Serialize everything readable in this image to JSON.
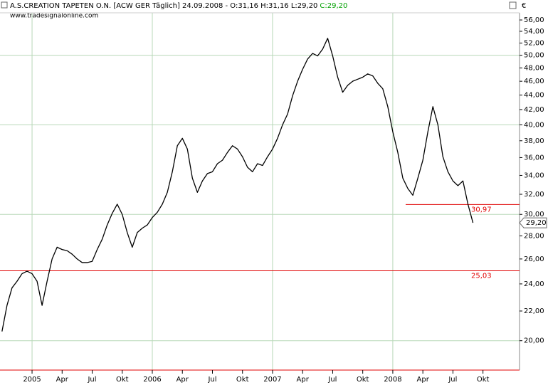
{
  "chart_data": {
    "type": "line",
    "title": "A.S.CREATION TAPETEN O.N. [ACW GER  Täglich] 24.09.2008 - O:31,16 H:31,16 L:29,20",
    "close_label": "C:29,20",
    "source": "www.tradesignalonline.com",
    "currency": "€",
    "log": true,
    "ylim": [
      18.2,
      57.3
    ],
    "yticks": [
      {
        "value": 20,
        "label": "20,00"
      },
      {
        "value": 22,
        "label": "22,00"
      },
      {
        "value": 24,
        "label": "24,00"
      },
      {
        "value": 26,
        "label": "26,00"
      },
      {
        "value": 28,
        "label": "28,00"
      },
      {
        "value": 30,
        "label": "30,00"
      },
      {
        "value": 32,
        "label": "32,00"
      },
      {
        "value": 34,
        "label": "34,00"
      },
      {
        "value": 36,
        "label": "36,00"
      },
      {
        "value": 38,
        "label": "38,00"
      },
      {
        "value": 40,
        "label": "40,00"
      },
      {
        "value": 42,
        "label": "42,00"
      },
      {
        "value": 44,
        "label": "44,00"
      },
      {
        "value": 46,
        "label": "46,00"
      },
      {
        "value": 48,
        "label": "48,00"
      },
      {
        "value": 50,
        "label": "50,00"
      },
      {
        "value": 52,
        "label": "52,00"
      },
      {
        "value": 54,
        "label": "54,00"
      },
      {
        "value": 56,
        "label": "56,00"
      }
    ],
    "ygrid": [
      20,
      30,
      40,
      50
    ],
    "categories": [
      null,
      null,
      null,
      null,
      null,
      null,
      "2005",
      null,
      null,
      null,
      null,
      null,
      "Apr",
      null,
      null,
      null,
      null,
      null,
      "Jul",
      null,
      null,
      null,
      null,
      null,
      "Okt",
      null,
      null,
      null,
      null,
      null,
      "2006",
      null,
      null,
      null,
      null,
      null,
      "Apr",
      null,
      null,
      null,
      null,
      null,
      "Jul",
      null,
      null,
      null,
      null,
      null,
      "Okt",
      null,
      null,
      null,
      null,
      null,
      "2007",
      null,
      null,
      null,
      null,
      null,
      "Apr",
      null,
      null,
      null,
      null,
      null,
      "Jul",
      null,
      null,
      null,
      null,
      null,
      "Okt",
      null,
      null,
      null,
      null,
      null,
      "2008",
      null,
      null,
      null,
      null,
      null,
      "Apr",
      null,
      null,
      null,
      null,
      null,
      "Jul",
      null,
      null,
      null,
      null,
      null,
      "Okt"
    ],
    "values": [
      20.6,
      22.4,
      23.7,
      24.2,
      24.8,
      25,
      24.8,
      24.2,
      22.4,
      24.2,
      26,
      27,
      26.8,
      26.7,
      26.4,
      26,
      25.7,
      25.7,
      25.8,
      26.8,
      27.7,
      29,
      30.1,
      31,
      30,
      28.3,
      27,
      28.3,
      28.7,
      29,
      29.7,
      30.2,
      31,
      32.2,
      34.4,
      37.4,
      38.3,
      37,
      33.7,
      32.2,
      33.4,
      34.2,
      34.4,
      35.3,
      35.7,
      36.6,
      37.4,
      37,
      36.1,
      34.9,
      34.4,
      35.3,
      35.1,
      36.1,
      37,
      38.3,
      40,
      41.4,
      43.9,
      46,
      47.8,
      49.4,
      50.3,
      49.9,
      51,
      52.8,
      49.9,
      46.6,
      44.4,
      45.4,
      46,
      46.3,
      46.6,
      47.1,
      46.8,
      45.7,
      44.9,
      42.4,
      39.1,
      36.6,
      33.7,
      32.6,
      31.9,
      33.7,
      35.7,
      39.1,
      42.4,
      40,
      36.1,
      34.4,
      33.4,
      32.9,
      33.4,
      31,
      29.2,
      null,
      null
    ],
    "color": "#000000",
    "hlines": [
      {
        "value": 30.97,
        "label": "30,97"
      },
      {
        "value": 25.03,
        "label": "25,03"
      }
    ],
    "hline_color": "#e00000",
    "last": {
      "value": 29.2,
      "label": "29,20"
    }
  }
}
